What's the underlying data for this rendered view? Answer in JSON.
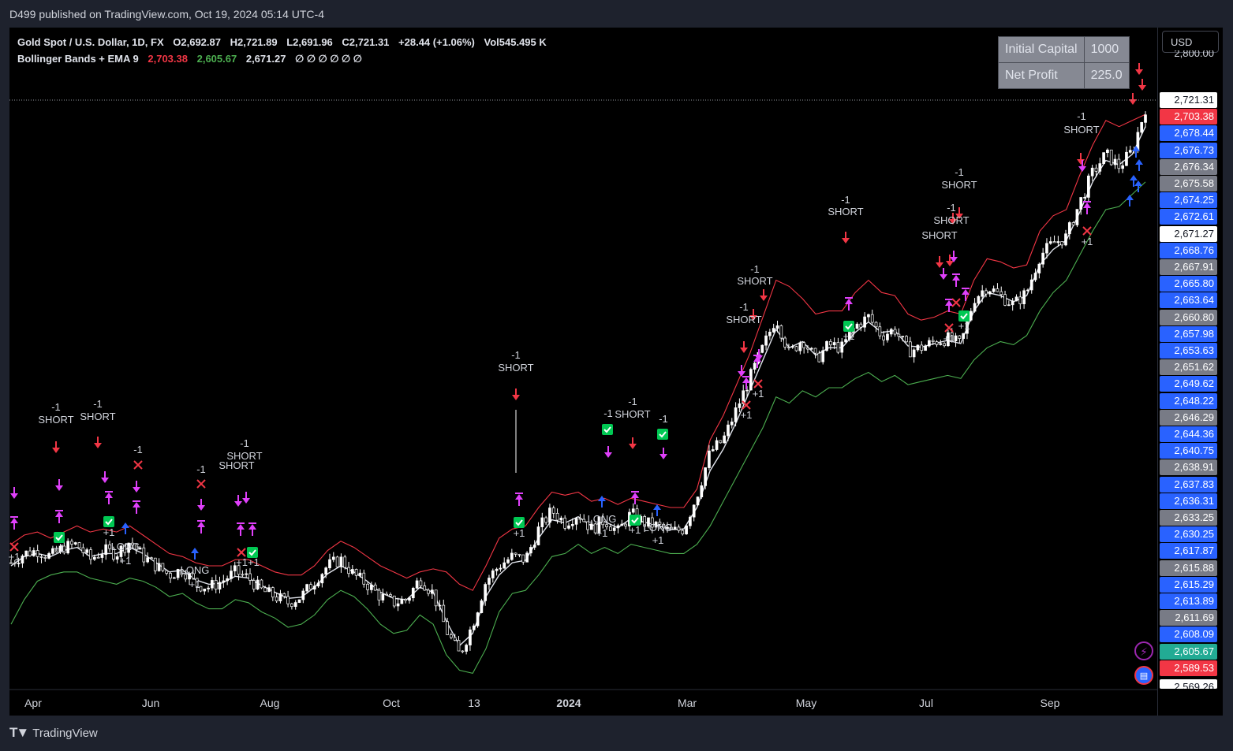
{
  "header": {
    "published_by": "D499 published on TradingView.com, Oct 19, 2024 05:14 UTC-4"
  },
  "legend": {
    "symbol_line": {
      "symbol": "Gold Spot / U.S. Dollar, 1D, FX",
      "open": "O2,692.87",
      "high": "H2,721.89",
      "low": "L2,691.96",
      "close": "C2,721.31",
      "change": "+28.44 (+1.06%)",
      "volume": "Vol545.495 K"
    },
    "indicator_line": {
      "name": "Bollinger Bands + EMA 9",
      "upper": "2,703.38",
      "lower": "2,605.67",
      "ema": "2,671.27",
      "placeholders": "∅ ∅ ∅ ∅ ∅ ∅"
    }
  },
  "info_table": {
    "rows": [
      {
        "label": "Initial Capital",
        "value": "1000"
      },
      {
        "label": "Net Profit",
        "value": "225.0"
      }
    ]
  },
  "currency_button": "USD",
  "price_scale": {
    "top_partial": "2,800.00",
    "bottom_partial": "2,569.26",
    "labels": [
      {
        "text": "2,721.31",
        "bg": "#ffffff",
        "fg": "#131722"
      },
      {
        "text": "2,703.38",
        "bg": "#f23645",
        "fg": "#ffffff"
      },
      {
        "text": "2,678.44",
        "bg": "#2962ff",
        "fg": "#ffffff"
      },
      {
        "text": "2,676.73",
        "bg": "#2962ff",
        "fg": "#ffffff"
      },
      {
        "text": "2,676.34",
        "bg": "#787b86",
        "fg": "#ffffff"
      },
      {
        "text": "2,675.58",
        "bg": "#787b86",
        "fg": "#ffffff"
      },
      {
        "text": "2,674.25",
        "bg": "#2962ff",
        "fg": "#ffffff"
      },
      {
        "text": "2,672.61",
        "bg": "#2962ff",
        "fg": "#ffffff"
      },
      {
        "text": "2,671.27",
        "bg": "#ffffff",
        "fg": "#131722"
      },
      {
        "text": "2,668.76",
        "bg": "#2962ff",
        "fg": "#ffffff"
      },
      {
        "text": "2,667.91",
        "bg": "#787b86",
        "fg": "#ffffff"
      },
      {
        "text": "2,665.80",
        "bg": "#2962ff",
        "fg": "#ffffff"
      },
      {
        "text": "2,663.64",
        "bg": "#2962ff",
        "fg": "#ffffff"
      },
      {
        "text": "2,660.80",
        "bg": "#787b86",
        "fg": "#ffffff"
      },
      {
        "text": "2,657.98",
        "bg": "#2962ff",
        "fg": "#ffffff"
      },
      {
        "text": "2,653.63",
        "bg": "#2962ff",
        "fg": "#ffffff"
      },
      {
        "text": "2,651.62",
        "bg": "#787b86",
        "fg": "#ffffff"
      },
      {
        "text": "2,649.62",
        "bg": "#2962ff",
        "fg": "#ffffff"
      },
      {
        "text": "2,648.22",
        "bg": "#2962ff",
        "fg": "#ffffff"
      },
      {
        "text": "2,646.29",
        "bg": "#787b86",
        "fg": "#ffffff"
      },
      {
        "text": "2,644.36",
        "bg": "#2962ff",
        "fg": "#ffffff"
      },
      {
        "text": "2,640.75",
        "bg": "#2962ff",
        "fg": "#ffffff"
      },
      {
        "text": "2,638.91",
        "bg": "#787b86",
        "fg": "#ffffff"
      },
      {
        "text": "2,637.83",
        "bg": "#2962ff",
        "fg": "#ffffff"
      },
      {
        "text": "2,636.31",
        "bg": "#2962ff",
        "fg": "#ffffff"
      },
      {
        "text": "2,633.25",
        "bg": "#787b86",
        "fg": "#ffffff"
      },
      {
        "text": "2,630.25",
        "bg": "#2962ff",
        "fg": "#ffffff"
      },
      {
        "text": "2,617.87",
        "bg": "#2962ff",
        "fg": "#ffffff"
      },
      {
        "text": "2,615.88",
        "bg": "#787b86",
        "fg": "#ffffff"
      },
      {
        "text": "2,615.29",
        "bg": "#2962ff",
        "fg": "#ffffff"
      },
      {
        "text": "2,613.89",
        "bg": "#2962ff",
        "fg": "#ffffff"
      },
      {
        "text": "2,611.69",
        "bg": "#787b86",
        "fg": "#ffffff"
      },
      {
        "text": "2,608.09",
        "bg": "#2962ff",
        "fg": "#ffffff"
      },
      {
        "text": "2,605.67",
        "bg": "#22ab94",
        "fg": "#ffffff"
      },
      {
        "text": "2,589.53",
        "bg": "#f23645",
        "fg": "#ffffff"
      }
    ]
  },
  "footer": {
    "brand": "TradingView"
  },
  "chart_data": {
    "type": "line",
    "title": "Gold Spot / U.S. Dollar, 1D, FX",
    "x_tick_labels": [
      "Apr",
      "Jun",
      "Aug",
      "Oct",
      "13",
      "2024",
      "Mar",
      "May",
      "Jul",
      "Sep"
    ],
    "y_axis": "not labeled (price scale shows only last-value labels)",
    "note": "Series values below are approximate trajectory of the plotted lines (relative shape traced from image).",
    "series": [
      {
        "name": "Price",
        "color": "#ffffff",
        "values": [
          1980,
          1995,
          2000,
          1990,
          2005,
          2010,
          1985,
          2000,
          1995,
          2015,
          1990,
          1975,
          1960,
          1970,
          1945,
          1940,
          1950,
          1965,
          1955,
          1935,
          1925,
          1915,
          1925,
          1950,
          1975,
          1985,
          1960,
          1945,
          1925,
          1915,
          1920,
          1955,
          1930,
          1870,
          1830,
          1880,
          1950,
          1975,
          1990,
          1985,
          2035,
          2065,
          2045,
          2060,
          2035,
          2050,
          2030,
          2060,
          2045,
          2040,
          2030,
          2035,
          2090,
          2160,
          2180,
          2230,
          2280,
          2330,
          2380,
          2320,
          2345,
          2310,
          2335,
          2330,
          2365,
          2380,
          2350,
          2360,
          2325,
          2330,
          2340,
          2345,
          2335,
          2410,
          2430,
          2415,
          2400,
          2420,
          2480,
          2500,
          2510,
          2565,
          2615,
          2645,
          2625,
          2650,
          2720
        ]
      },
      {
        "name": "EMA 9",
        "color": "#e0e3eb",
        "values": [
          1975,
          1990,
          1995,
          1990,
          2000,
          2005,
          1990,
          1995,
          1995,
          2005,
          1995,
          1980,
          1965,
          1968,
          1952,
          1945,
          1947,
          1958,
          1955,
          1943,
          1932,
          1922,
          1924,
          1940,
          1962,
          1975,
          1965,
          1950,
          1932,
          1922,
          1920,
          1940,
          1932,
          1885,
          1845,
          1865,
          1925,
          1960,
          1980,
          1984,
          2020,
          2050,
          2045,
          2055,
          2040,
          2047,
          2037,
          2052,
          2046,
          2041,
          2034,
          2035,
          2070,
          2130,
          2165,
          2210,
          2260,
          2310,
          2360,
          2330,
          2340,
          2318,
          2330,
          2330,
          2355,
          2372,
          2355,
          2358,
          2333,
          2331,
          2337,
          2342,
          2337,
          2390,
          2420,
          2415,
          2405,
          2415,
          2465,
          2490,
          2505,
          2550,
          2600,
          2635,
          2628,
          2645,
          2690
        ]
      },
      {
        "name": "Upper Band",
        "color": "#f23645",
        "values": [
          2010,
          2025,
          2030,
          2020,
          2030,
          2040,
          2030,
          2035,
          2030,
          2040,
          2025,
          2010,
          1995,
          1990,
          1980,
          1975,
          1975,
          1985,
          1985,
          1975,
          1965,
          1960,
          1960,
          1975,
          2000,
          2015,
          2005,
          1990,
          1975,
          1965,
          1955,
          1965,
          1970,
          1965,
          1945,
          1935,
          1975,
          2020,
          2035,
          2040,
          2070,
          2095,
          2090,
          2095,
          2080,
          2085,
          2075,
          2085,
          2080,
          2075,
          2070,
          2070,
          2100,
          2180,
          2220,
          2270,
          2320,
          2380,
          2440,
          2430,
          2410,
          2385,
          2390,
          2390,
          2420,
          2440,
          2420,
          2415,
          2385,
          2375,
          2380,
          2390,
          2385,
          2440,
          2475,
          2470,
          2460,
          2465,
          2520,
          2545,
          2555,
          2610,
          2660,
          2700,
          2690,
          2700,
          2710
        ]
      },
      {
        "name": "Lower Band",
        "color": "#4caf50",
        "values": [
          1880,
          1920,
          1950,
          1960,
          1965,
          1965,
          1955,
          1950,
          1945,
          1955,
          1950,
          1940,
          1925,
          1930,
          1915,
          1905,
          1905,
          1920,
          1915,
          1900,
          1890,
          1875,
          1880,
          1895,
          1920,
          1935,
          1925,
          1905,
          1880,
          1865,
          1870,
          1895,
          1880,
          1830,
          1805,
          1800,
          1840,
          1900,
          1930,
          1935,
          1960,
          1990,
          1995,
          2010,
          1995,
          2005,
          1995,
          2010,
          2005,
          2000,
          1995,
          1995,
          2010,
          2040,
          2080,
          2120,
          2160,
          2200,
          2250,
          2240,
          2260,
          2250,
          2265,
          2265,
          2280,
          2290,
          2275,
          2285,
          2270,
          2275,
          2280,
          2285,
          2280,
          2310,
          2330,
          2340,
          2335,
          2350,
          2390,
          2420,
          2440,
          2480,
          2520,
          2555,
          2560,
          2580,
          2600
        ]
      }
    ],
    "signal_labels": [
      {
        "text": "-1",
        "sub": "SHORT"
      },
      {
        "text": "+1",
        "sub": "LONG"
      }
    ]
  },
  "chart_annotations": {
    "texts": [
      "-1",
      "SHORT",
      "-1",
      "SHORT",
      "-1",
      "-1",
      "SHORT",
      "-1",
      "SHORT",
      "-1",
      "SHORT",
      "-1",
      "-1",
      "SHORT",
      "-1",
      "-1",
      "SHORT",
      "-1",
      "SHORT",
      "-1",
      "SHORT",
      "-1",
      "SHORT",
      "-1",
      "SHORT",
      "SHORT",
      "-1",
      "SHORT",
      "+1",
      "+1",
      "+1",
      "LONG",
      "+1",
      "LONG",
      "+1",
      "+1+1",
      "+1",
      "LONG",
      "+1",
      "+1",
      "LONG",
      "+1",
      "+1",
      "+1",
      "+1",
      "+1",
      "+1",
      "+1"
    ]
  }
}
